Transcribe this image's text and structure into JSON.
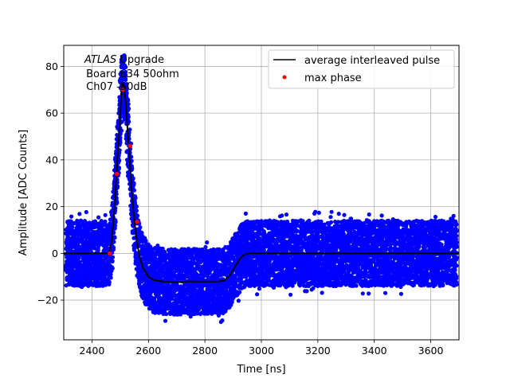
{
  "chart_data": {
    "type": "scatter",
    "title": "",
    "xlabel": "Time [ns]",
    "ylabel": "Amplitude [ADC Counts]",
    "xlim": [
      2300,
      3700
    ],
    "ylim": [
      -37,
      89
    ],
    "xticks": [
      2400,
      2600,
      2800,
      3000,
      3200,
      3400,
      3600
    ],
    "yticks": [
      -20,
      0,
      20,
      40,
      60,
      80
    ],
    "xtick_labels": [
      "2400",
      "2600",
      "2800",
      "3000",
      "3200",
      "3400",
      "3600"
    ],
    "ytick_labels": [
      "−20",
      "0",
      "20",
      "40",
      "60",
      "80"
    ],
    "grid": true,
    "legend_placement": "upper right",
    "annotation": {
      "italic": "ATLAS",
      "line1_rest": " Upgrade",
      "line2": " Board 634 50ohm",
      "line3": " Ch07 -50dB"
    },
    "series": [
      {
        "name": "",
        "kind": "scatter",
        "color": "#0000ff",
        "description_points": "dense noisy samples around the pulse, spread approximately ±14 ADC counts",
        "noise_halfwidth": 14
      },
      {
        "name": "average interleaved pulse",
        "kind": "line",
        "color": "#000000",
        "x": [
          2300,
          2420,
          2460,
          2470,
          2480,
          2490,
          2500,
          2505,
          2510,
          2515,
          2520,
          2530,
          2540,
          2550,
          2560,
          2570,
          2580,
          2600,
          2620,
          2650,
          2700,
          2750,
          2800,
          2850,
          2870,
          2880,
          2890,
          2900,
          2910,
          2920,
          2930,
          2940,
          2960,
          3000,
          3100,
          3300,
          3500,
          3700
        ],
        "y": [
          0,
          0,
          0,
          5,
          20,
          40,
          60,
          70,
          73,
          70,
          64,
          46,
          28,
          14,
          4,
          -2,
          -6,
          -10,
          -11.5,
          -12,
          -12.3,
          -12,
          -12.1,
          -12,
          -11.5,
          -10.5,
          -9,
          -7,
          -5,
          -3,
          -1.5,
          -0.5,
          0,
          0,
          0,
          0,
          0,
          0
        ]
      },
      {
        "name": "max phase",
        "kind": "scatter",
        "color": "#ff0000",
        "x": [
          2463,
          2488,
          2510,
          2535,
          2560
        ],
        "y": [
          0,
          34,
          70,
          46,
          13.5
        ]
      }
    ]
  }
}
